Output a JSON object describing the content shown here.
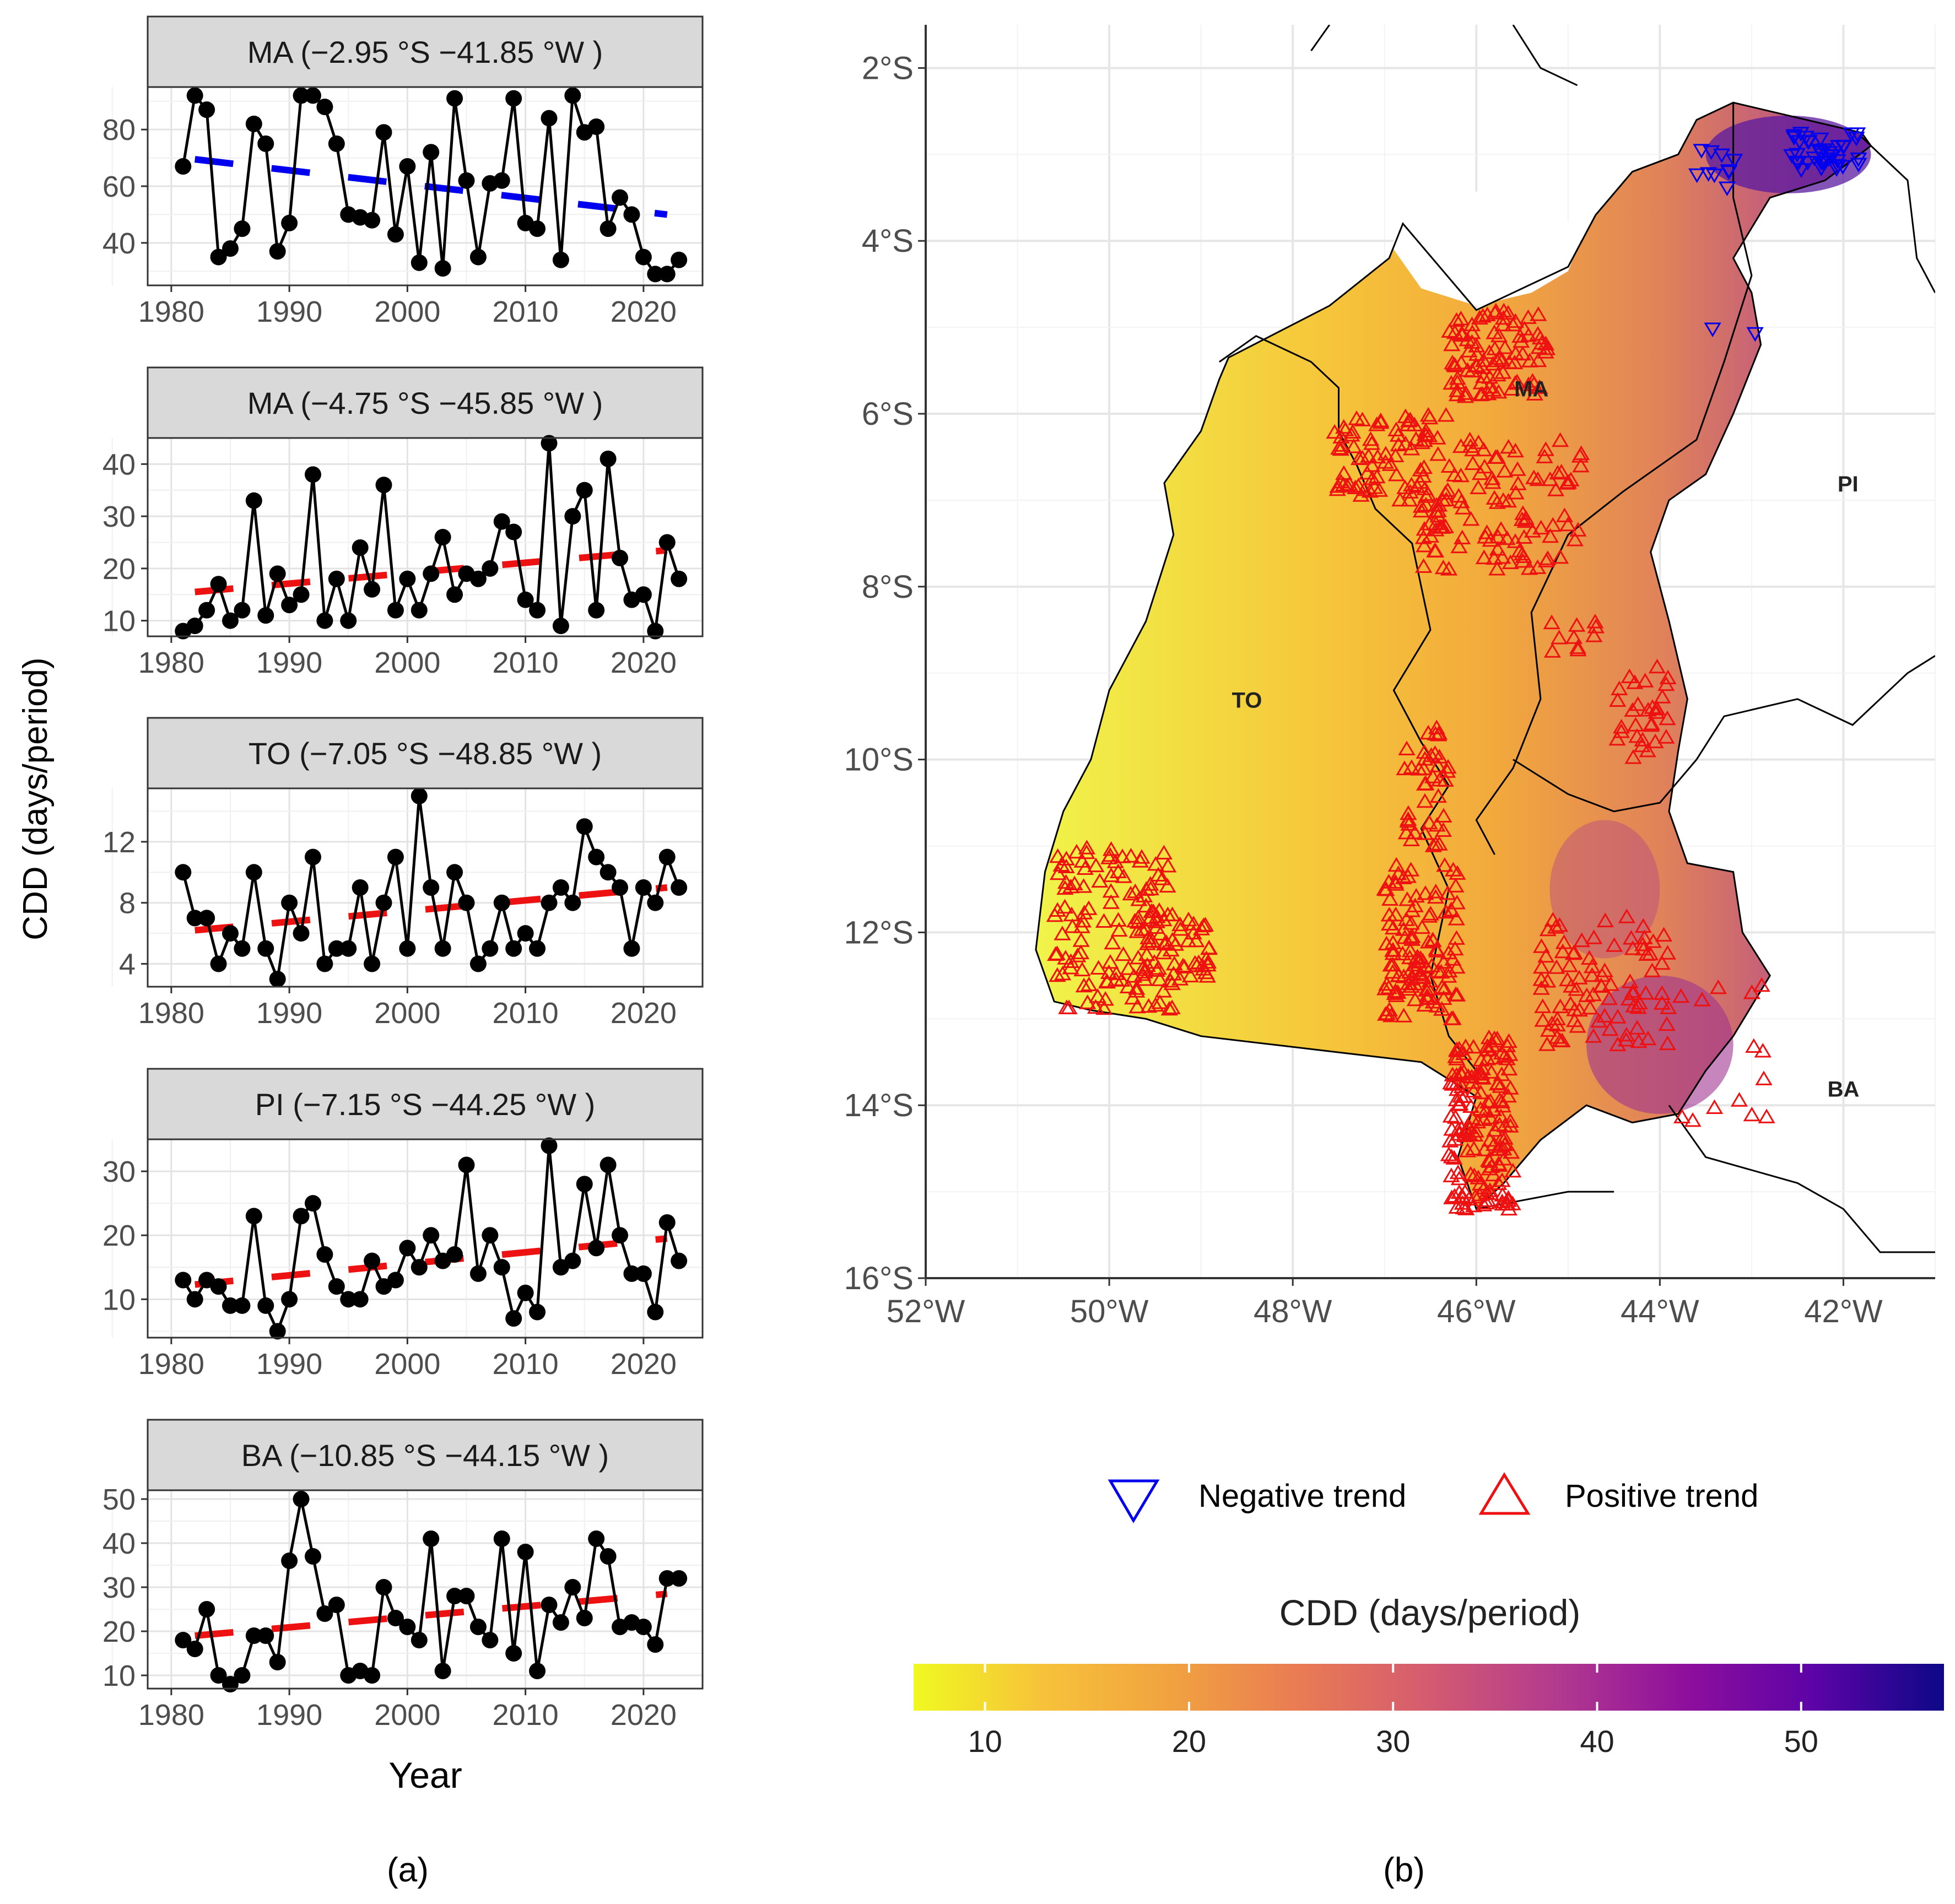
{
  "chart_data": [
    {
      "type": "line",
      "panel": "a",
      "shared_ylabel": "CDD (days/period)",
      "xlabel": "Year",
      "xlim": [
        1978,
        2025
      ],
      "x_ticks": [
        1980,
        1990,
        2000,
        2010,
        2020
      ],
      "facets": [
        {
          "strip": "MA (−2.95 °S −41.85 °W )",
          "trend": "negative",
          "trend_color": "#0000ee",
          "ylim": [
            25,
            95
          ],
          "y_ticks": [
            40,
            60,
            80
          ],
          "trend_line": [
            [
              1982,
              69.5
            ],
            [
              2022,
              50
            ]
          ],
          "x": [
            1981,
            1982,
            1983,
            1984,
            1985,
            1986,
            1987,
            1988,
            1989,
            1990,
            1991,
            1992,
            1993,
            1994,
            1995,
            1996,
            1997,
            1998,
            1999,
            2000,
            2001,
            2002,
            2003,
            2004,
            2005,
            2006,
            2007,
            2008,
            2009,
            2010,
            2011,
            2012,
            2013,
            2014,
            2015,
            2016,
            2017,
            2018,
            2019,
            2020,
            2021,
            2022,
            2023
          ],
          "values": [
            67,
            92,
            87,
            35,
            38,
            45,
            82,
            75,
            37,
            47,
            92,
            92,
            88,
            75,
            50,
            49,
            48,
            79,
            43,
            67,
            33,
            72,
            31,
            91,
            62,
            35,
            61,
            62,
            91,
            47,
            45,
            84,
            34,
            92,
            79,
            81,
            45,
            56,
            50,
            35,
            29,
            29,
            34
          ]
        },
        {
          "strip": "MA (−4.75 °S −45.85 °W )",
          "trend": "positive",
          "trend_color": "#ee1111",
          "ylim": [
            7,
            45
          ],
          "y_ticks": [
            10,
            20,
            30,
            40
          ],
          "trend_line": [
            [
              1982,
              15.5
            ],
            [
              2022,
              23.5
            ]
          ],
          "x": [
            1981,
            1982,
            1983,
            1984,
            1985,
            1986,
            1987,
            1988,
            1989,
            1990,
            1991,
            1992,
            1993,
            1994,
            1995,
            1996,
            1997,
            1998,
            1999,
            2000,
            2001,
            2002,
            2003,
            2004,
            2005,
            2006,
            2007,
            2008,
            2009,
            2010,
            2011,
            2012,
            2013,
            2014,
            2015,
            2016,
            2017,
            2018,
            2019,
            2020,
            2021,
            2022,
            2023
          ],
          "values": [
            8,
            9,
            12,
            17,
            10,
            12,
            33,
            11,
            19,
            13,
            15,
            38,
            10,
            18,
            10,
            24,
            16,
            36,
            12,
            18,
            12,
            19,
            26,
            15,
            19,
            18,
            20,
            29,
            27,
            14,
            12,
            44,
            9,
            30,
            35,
            12,
            41,
            22,
            14,
            15,
            8,
            25,
            18
          ]
        },
        {
          "strip": "TO (−7.05 °S −48.85 °W )",
          "trend": "positive",
          "trend_color": "#ee1111",
          "ylim": [
            2.5,
            15.5
          ],
          "y_ticks": [
            4,
            8,
            12
          ],
          "trend_line": [
            [
              1982,
              6.2
            ],
            [
              2022,
              9
            ]
          ],
          "x": [
            1981,
            1982,
            1983,
            1984,
            1985,
            1986,
            1987,
            1988,
            1989,
            1990,
            1991,
            1992,
            1993,
            1994,
            1995,
            1996,
            1997,
            1998,
            1999,
            2000,
            2001,
            2002,
            2003,
            2004,
            2005,
            2006,
            2007,
            2008,
            2009,
            2010,
            2011,
            2012,
            2013,
            2014,
            2015,
            2016,
            2017,
            2018,
            2019,
            2020,
            2021,
            2022,
            2023
          ],
          "values": [
            10,
            7,
            7,
            4,
            6,
            5,
            10,
            5,
            3,
            8,
            6,
            11,
            4,
            5,
            5,
            9,
            4,
            8,
            11,
            5,
            15,
            9,
            5,
            10,
            8,
            4,
            5,
            8,
            5,
            6,
            5,
            8,
            9,
            8,
            13,
            11,
            10,
            9,
            5,
            9,
            8,
            11,
            9
          ]
        },
        {
          "strip": "PI (−7.15 °S −44.25 °W )",
          "trend": "positive",
          "trend_color": "#ee1111",
          "ylim": [
            4,
            35
          ],
          "y_ticks": [
            10,
            20,
            30
          ],
          "trend_line": [
            [
              1982,
              12.3
            ],
            [
              2022,
              19.5
            ]
          ],
          "x": [
            1981,
            1982,
            1983,
            1984,
            1985,
            1986,
            1987,
            1988,
            1989,
            1990,
            1991,
            1992,
            1993,
            1994,
            1995,
            1996,
            1997,
            1998,
            1999,
            2000,
            2001,
            2002,
            2003,
            2004,
            2005,
            2006,
            2007,
            2008,
            2009,
            2010,
            2011,
            2012,
            2013,
            2014,
            2015,
            2016,
            2017,
            2018,
            2019,
            2020,
            2021,
            2022,
            2023
          ],
          "values": [
            13,
            10,
            13,
            12,
            9,
            9,
            23,
            9,
            5,
            10,
            23,
            25,
            17,
            12,
            10,
            10,
            16,
            12,
            13,
            18,
            15,
            20,
            16,
            17,
            31,
            14,
            20,
            15,
            7,
            11,
            8,
            34,
            15,
            16,
            28,
            18,
            31,
            20,
            14,
            14,
            8,
            22,
            16
          ]
        },
        {
          "strip": "BA (−10.85 °S −44.15 °W )",
          "trend": "positive",
          "trend_color": "#ee1111",
          "ylim": [
            7,
            52
          ],
          "y_ticks": [
            10,
            20,
            30,
            40,
            50
          ],
          "trend_line": [
            [
              1982,
              19
            ],
            [
              2022,
              28.5
            ]
          ],
          "x": [
            1981,
            1982,
            1983,
            1984,
            1985,
            1986,
            1987,
            1988,
            1989,
            1990,
            1991,
            1992,
            1993,
            1994,
            1995,
            1996,
            1997,
            1998,
            1999,
            2000,
            2001,
            2002,
            2003,
            2004,
            2005,
            2006,
            2007,
            2008,
            2009,
            2010,
            2011,
            2012,
            2013,
            2014,
            2015,
            2016,
            2017,
            2018,
            2019,
            2020,
            2021,
            2022,
            2023
          ],
          "values": [
            18,
            16,
            25,
            10,
            8,
            10,
            19,
            19,
            13,
            36,
            50,
            37,
            24,
            26,
            10,
            11,
            10,
            30,
            23,
            21,
            18,
            41,
            11,
            28,
            28,
            21,
            18,
            41,
            15,
            38,
            11,
            26,
            22,
            30,
            23,
            41,
            37,
            21,
            22,
            21,
            17,
            32,
            32
          ]
        }
      ]
    },
    {
      "type": "heatmap",
      "panel": "b",
      "subtype": "map",
      "x_ticks": [
        "52°W",
        "50°W",
        "48°W",
        "46°W",
        "44°W",
        "42°W"
      ],
      "y_ticks": [
        "2°S",
        "4°S",
        "6°S",
        "8°S",
        "10°S",
        "12°S",
        "14°S",
        "16°S"
      ],
      "lon_range": [
        -52,
        -41
      ],
      "lat_range": [
        -16,
        -1.5
      ],
      "state_labels": [
        "MA",
        "PI",
        "TO",
        "BA"
      ],
      "legend": {
        "negative_trend": "Negative trend",
        "positive_trend": "Positive trend",
        "negative_color": "#0000ee",
        "positive_color": "#ee1111"
      },
      "colorbar": {
        "title": "CDD (days/period)",
        "ticks": [
          10,
          20,
          30,
          40,
          50
        ],
        "range": [
          6.5,
          57
        ],
        "colors": [
          "#f0f921",
          "#f7c23a",
          "#f1a240",
          "#e97b54",
          "#d45b70",
          "#b23a8f",
          "#8e0f9d",
          "#5c03a7",
          "#0d0887"
        ]
      },
      "trend_clusters": [
        {
          "trend": "negative",
          "lon": [
            -42.6,
            -41.8
          ],
          "lat": [
            -3.2,
            -2.75
          ],
          "count": 40
        },
        {
          "trend": "negative",
          "lon": [
            -43.6,
            -43.0
          ],
          "lat": [
            -3.4,
            -2.95
          ],
          "count": 10
        },
        {
          "trend": "negative",
          "lon": [
            -43.5,
            -42.9
          ],
          "lat": [
            -5.1,
            -5.0
          ],
          "count": 2
        },
        {
          "trend": "positive",
          "lon": [
            -46.3,
            -45.2
          ],
          "lat": [
            -5.8,
            -4.8
          ],
          "count": 90
        },
        {
          "trend": "positive",
          "lon": [
            -46.6,
            -44.8
          ],
          "lat": [
            -7.8,
            -6.3
          ],
          "count": 110
        },
        {
          "trend": "positive",
          "lon": [
            -47.6,
            -46.3
          ],
          "lat": [
            -7.0,
            -6.0
          ],
          "count": 80
        },
        {
          "trend": "positive",
          "lon": [
            -50.6,
            -49.3
          ],
          "lat": [
            -12.9,
            -11.0
          ],
          "count": 120
        },
        {
          "trend": "positive",
          "lon": [
            -49.7,
            -48.9
          ],
          "lat": [
            -12.6,
            -11.7
          ],
          "count": 50
        },
        {
          "trend": "positive",
          "lon": [
            -46.8,
            -46.3
          ],
          "lat": [
            -11.0,
            -9.6
          ],
          "count": 40
        },
        {
          "trend": "positive",
          "lon": [
            -47.0,
            -46.2
          ],
          "lat": [
            -13.0,
            -11.2
          ],
          "count": 120
        },
        {
          "trend": "positive",
          "lon": [
            -46.3,
            -45.6
          ],
          "lat": [
            -15.2,
            -13.2
          ],
          "count": 160
        },
        {
          "trend": "positive",
          "lon": [
            -45.3,
            -43.9
          ],
          "lat": [
            -13.3,
            -11.8
          ],
          "count": 90
        },
        {
          "trend": "positive",
          "lon": [
            -44.5,
            -43.9
          ],
          "lat": [
            -10.0,
            -8.9
          ],
          "count": 30
        },
        {
          "trend": "positive",
          "lon": [
            -45.2,
            -44.6
          ],
          "lat": [
            -8.8,
            -8.4
          ],
          "count": 10
        },
        {
          "trend": "positive",
          "lon": [
            -43.8,
            -42.8
          ],
          "lat": [
            -14.2,
            -12.6
          ],
          "count": 14
        }
      ]
    }
  ],
  "panel_labels": {
    "a": "(a)",
    "b": "(b)"
  }
}
